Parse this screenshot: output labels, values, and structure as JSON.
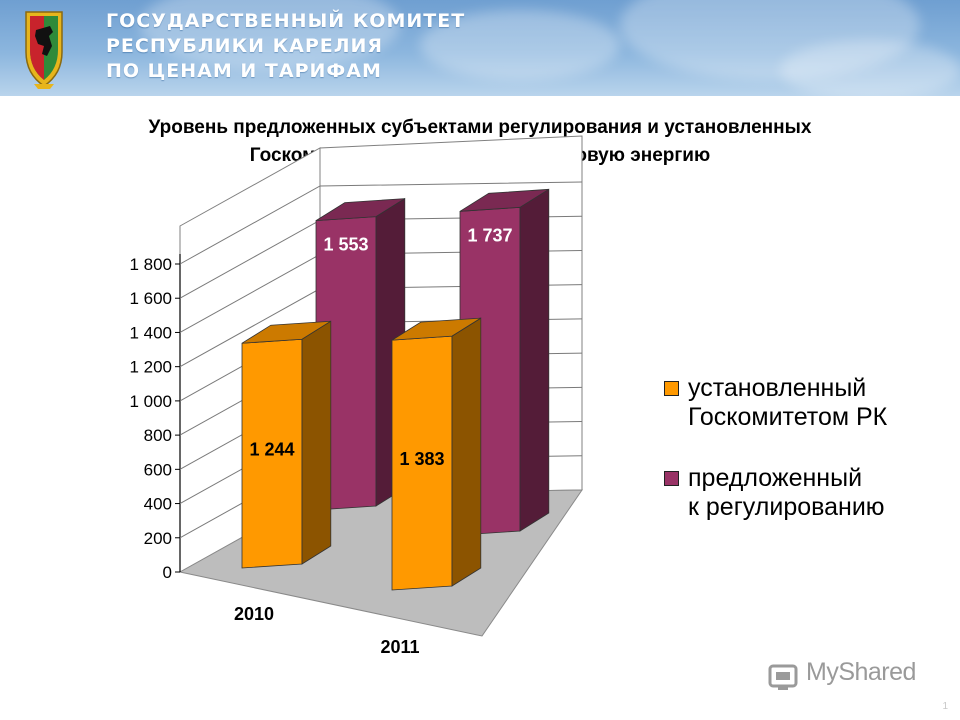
{
  "header": {
    "org_lines": [
      "ГОСУДАРСТВЕННЫЙ КОМИТЕТ",
      "РЕСПУБЛИКИ КАРЕЛИЯ",
      "ПО ЦЕНАМ И ТАРИФАМ"
    ],
    "background_color": "#7fabd8"
  },
  "slide": {
    "title_lines": [
      "Уровень предложенных субъектами регулирования и установленных",
      "Госкомитетом РК тарифов на тепловую энергию"
    ],
    "page_number": "1"
  },
  "chart_data": {
    "type": "bar",
    "categories": [
      "2010",
      "2011"
    ],
    "series": [
      {
        "name": "установленный Госкомитетом РК",
        "values": [
          1244,
          1383
        ],
        "color": "#ff9900"
      },
      {
        "name": "предложенный к регулированию",
        "values": [
          1553,
          1737
        ],
        "color": "#993366"
      }
    ],
    "data_labels": [
      [
        "1 244",
        "1 383"
      ],
      [
        "1 553",
        "1 737"
      ]
    ],
    "y_ticks": [
      "0",
      "200",
      "400",
      "600",
      "800",
      "1 000",
      "1 200",
      "1 400",
      "1 600",
      "1 800"
    ],
    "y_tick_values": [
      0,
      200,
      400,
      600,
      800,
      1000,
      1200,
      1400,
      1600,
      1800
    ],
    "ylim": [
      0,
      1800
    ],
    "grid": true,
    "legend_position": "right",
    "legend_lines": [
      [
        "установленный",
        "Госкомитетом РК"
      ],
      [
        "предложенный",
        "к регулированию"
      ]
    ]
  },
  "watermark": {
    "text": "MyShared"
  }
}
